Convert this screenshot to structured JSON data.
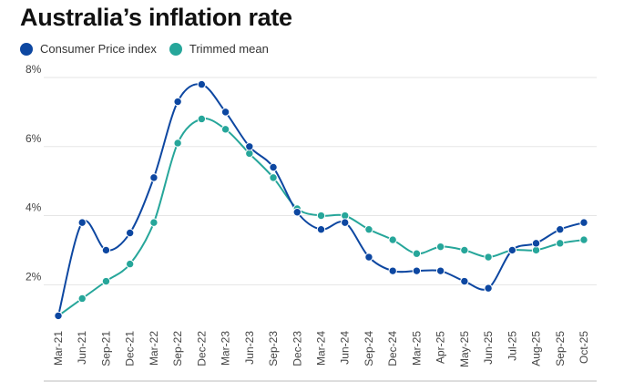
{
  "title": "Australia’s inflation rate",
  "legend": {
    "cpi_label": "Consumer Price index",
    "tm_label": "Trimmed mean"
  },
  "colors": {
    "cpi": "#0d47a1",
    "trimmed_mean": "#26a69a",
    "grid": "#e5e5e5",
    "baseline": "#bbbbbb"
  },
  "chart_data": {
    "type": "line",
    "title": "Australia’s inflation rate",
    "xlabel": "",
    "ylabel": "",
    "categories": [
      "Mar-21",
      "Jun-21",
      "Sep-21",
      "Dec-21",
      "Mar-22",
      "Sep-22",
      "Dec-22",
      "Mar-23",
      "Jun-23",
      "Sep-23",
      "Dec-23",
      "Mar-24",
      "Jun-24",
      "Sep-24",
      "Dec-24",
      "Mar-25",
      "Apr-25",
      "May-25",
      "Jun-25",
      "Jul-25",
      "Aug-25",
      "Sep-25",
      "Oct-25"
    ],
    "x_positions": [
      0,
      1,
      2,
      3,
      4,
      5,
      6,
      7,
      8,
      9,
      10,
      11,
      12,
      13,
      14,
      15,
      16,
      17,
      18,
      19,
      20,
      21,
      22
    ],
    "series": [
      {
        "name": "Consumer Price index",
        "color": "#0d47a1",
        "x": [
          0,
          1,
          2,
          3,
          4,
          5,
          6,
          7,
          8,
          9,
          10,
          11,
          12,
          13,
          14,
          15,
          16,
          17,
          18,
          19,
          20,
          21,
          22
        ],
        "values": [
          1.1,
          3.8,
          3.0,
          3.5,
          5.1,
          7.3,
          7.8,
          7.0,
          6.0,
          5.4,
          4.1,
          3.6,
          3.8,
          2.8,
          2.4,
          2.4,
          2.4,
          2.1,
          1.9,
          3.0,
          3.2,
          3.6,
          3.8
        ]
      },
      {
        "name": "Trimmed mean",
        "color": "#26a69a",
        "x": [
          0,
          1,
          2,
          3,
          4,
          5,
          6,
          7,
          8,
          9,
          10,
          11,
          12,
          13,
          14,
          15,
          16,
          17,
          18,
          19,
          20,
          21,
          22
        ],
        "values": [
          1.1,
          1.6,
          2.1,
          2.6,
          3.8,
          6.1,
          6.8,
          6.5,
          5.8,
          5.1,
          4.2,
          4.0,
          4.0,
          3.6,
          3.3,
          2.9,
          3.1,
          3.0,
          2.8,
          3.0,
          3.0,
          3.2,
          3.3
        ]
      }
    ],
    "yticks": [
      2,
      4,
      6,
      8
    ],
    "ytick_labels": [
      "2%",
      "4%",
      "6%",
      "8%"
    ],
    "ylim": [
      0.9,
      8
    ],
    "grid": true,
    "legend_position": "top-left"
  }
}
